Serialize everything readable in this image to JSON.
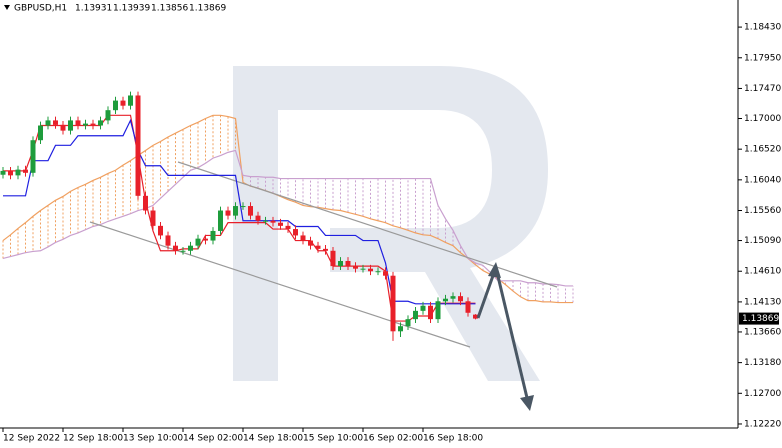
{
  "chart_data": {
    "type": "candlestick",
    "title": "GBPUSD,H1",
    "categories": [
      "12 Sep 2022",
      null,
      null,
      null,
      null,
      null,
      null,
      null,
      "12 Sep 18:00",
      null,
      null,
      null,
      null,
      null,
      null,
      null,
      "13 Sep 10:00",
      null,
      null,
      null,
      null,
      null,
      null,
      null,
      "14 Sep 02:00",
      null,
      null,
      null,
      null,
      null,
      null,
      null,
      "14 Sep 18:00",
      null,
      null,
      null,
      null,
      null,
      null,
      null,
      "15 Sep 10:00",
      null,
      null,
      null,
      null,
      null,
      null,
      null,
      "16 Sep 02:00",
      null,
      null,
      null,
      null,
      null,
      null,
      null,
      "16 Sep 18:00",
      null,
      null,
      null,
      null,
      null,
      null,
      null,
      null,
      null,
      null,
      null,
      null,
      null,
      null,
      null,
      null,
      null,
      null,
      null,
      null
    ],
    "open": [
      1.1612,
      1.1618,
      1.1611,
      1.162,
      1.1615,
      1.1666,
      1.1689,
      1.1697,
      1.169,
      1.1681,
      1.1697,
      1.1689,
      1.1692,
      1.1689,
      1.1697,
      1.1713,
      1.1728,
      1.172,
      1.1736,
      1.1579,
      1.1556,
      1.1532,
      1.1517,
      1.1501,
      1.1493,
      1.1493,
      1.1501,
      1.1512,
      1.1509,
      1.1524,
      1.1556,
      1.1548,
      1.1563,
      1.1563,
      1.1548,
      1.154,
      1.154,
      1.1537,
      1.1532,
      1.1527,
      1.1517,
      1.1509,
      1.1501,
      1.1496,
      1.1493,
      1.1469,
      1.1477,
      1.1469,
      1.1465,
      1.1465,
      1.1461,
      1.1461,
      1.1454,
      1.1367,
      1.1375,
      1.1386,
      1.1399,
      1.1407,
      1.1386,
      1.1414,
      1.1418,
      1.1422,
      1.1414,
      1.13931,
      null,
      null,
      null,
      null,
      null,
      null,
      null,
      null,
      null,
      null,
      null,
      null,
      null
    ],
    "high": [
      1.1624,
      1.1624,
      1.1626,
      1.1626,
      1.1672,
      1.1695,
      1.1703,
      1.1703,
      1.1696,
      1.1703,
      1.1703,
      1.1698,
      1.1698,
      1.1703,
      1.1719,
      1.1734,
      1.1734,
      1.1742,
      1.1742,
      1.1585,
      1.1562,
      1.1538,
      1.1523,
      1.1507,
      1.1499,
      1.1507,
      1.1518,
      1.1518,
      1.153,
      1.1562,
      1.1562,
      1.1569,
      1.1569,
      1.1569,
      1.1554,
      1.1546,
      1.1546,
      1.1543,
      1.1538,
      1.1533,
      1.1523,
      1.1515,
      1.1507,
      1.1502,
      1.1499,
      1.1483,
      1.1483,
      1.1475,
      1.1471,
      1.1471,
      1.1467,
      1.1467,
      1.146,
      1.1381,
      1.1392,
      1.1405,
      1.1413,
      1.1413,
      1.142,
      1.1424,
      1.1428,
      1.1428,
      1.142,
      1.13939,
      null,
      null,
      null,
      null,
      null,
      null,
      null,
      null,
      null,
      null,
      null,
      null,
      null
    ],
    "low": [
      1.1606,
      1.1605,
      1.1605,
      1.1609,
      1.1609,
      1.166,
      1.1683,
      1.1684,
      1.1675,
      1.1675,
      1.1683,
      1.1683,
      1.1683,
      1.1683,
      1.1691,
      1.1707,
      1.1714,
      1.1714,
      1.1573,
      1.155,
      1.1526,
      1.1511,
      1.1495,
      1.1487,
      1.1487,
      1.1487,
      1.1495,
      1.1503,
      1.1503,
      1.1518,
      1.1542,
      1.1542,
      1.1557,
      1.1542,
      1.1534,
      1.1534,
      1.1531,
      1.1526,
      1.1521,
      1.1511,
      1.1503,
      1.1495,
      1.149,
      1.1487,
      1.1463,
      1.1463,
      1.1463,
      1.1459,
      1.1459,
      1.1455,
      1.1455,
      1.1448,
      1.1352,
      1.1358,
      1.1369,
      1.138,
      1.1393,
      1.138,
      1.138,
      1.1408,
      1.1412,
      1.1408,
      1.139,
      1.13856,
      null,
      null,
      null,
      null,
      null,
      null,
      null,
      null,
      null,
      null,
      null,
      null,
      null
    ],
    "close": [
      1.1618,
      1.1611,
      1.162,
      1.1615,
      1.1666,
      1.1689,
      1.1697,
      1.169,
      1.1681,
      1.1697,
      1.1689,
      1.1692,
      1.1689,
      1.1697,
      1.1713,
      1.1728,
      1.172,
      1.1736,
      1.1579,
      1.1556,
      1.1532,
      1.1517,
      1.1501,
      1.1493,
      1.1493,
      1.1501,
      1.1512,
      1.1509,
      1.1524,
      1.1556,
      1.1548,
      1.1563,
      1.1563,
      1.1548,
      1.154,
      1.154,
      1.1537,
      1.1532,
      1.1527,
      1.1517,
      1.1509,
      1.1501,
      1.1496,
      1.1493,
      1.1469,
      1.1477,
      1.1469,
      1.1465,
      1.1465,
      1.1461,
      1.1461,
      1.1454,
      1.1367,
      1.1375,
      1.1386,
      1.1399,
      1.1407,
      1.1386,
      1.1414,
      1.1418,
      1.1422,
      1.1414,
      1.1396,
      1.13869,
      null,
      null,
      null,
      null,
      null,
      null,
      null,
      null,
      null,
      null,
      null,
      null,
      null
    ],
    "up_color": "#1e9c3c",
    "down_color": "#e8202a",
    "series": [
      {
        "color": "#e8202a",
        "values": [
          1.1618,
          1.1618,
          1.1618,
          1.1618,
          1.165,
          1.1689,
          1.1689,
          1.1689,
          1.1689,
          1.1689,
          1.1689,
          1.1689,
          1.1689,
          1.1689,
          1.1705,
          1.1705,
          1.1705,
          1.1705,
          1.1642,
          1.1571,
          1.1524,
          1.1493,
          1.1493,
          1.1493,
          1.1496,
          1.1496,
          1.1496,
          1.1517,
          1.1517,
          1.1517,
          1.1537,
          1.1537,
          1.1537,
          1.1537,
          1.1537,
          1.1537,
          1.1527,
          1.1527,
          1.1527,
          1.1509,
          1.1509,
          1.1509,
          1.1493,
          1.1493,
          1.1469,
          1.1469,
          1.1469,
          1.1469,
          1.1469,
          1.1469,
          1.1469,
          1.1461,
          1.1383,
          1.1383,
          1.1383,
          1.1391,
          1.1391,
          1.1391,
          1.1411,
          1.1411,
          1.1411,
          1.1411,
          1.1411,
          1.1411,
          null,
          null,
          null,
          null,
          null,
          null,
          null,
          null,
          null,
          null,
          null,
          null,
          null
        ]
      },
      {
        "color": "#1f1fe0",
        "values": [
          1.1579,
          1.1579,
          1.1579,
          1.1579,
          1.1634,
          1.1634,
          1.1634,
          1.1658,
          1.1658,
          1.1658,
          1.1673,
          1.1673,
          1.1673,
          1.1673,
          1.1673,
          1.1673,
          1.1673,
          1.1697,
          1.165,
          1.1626,
          1.1626,
          1.1626,
          1.1611,
          1.1611,
          1.1611,
          1.1611,
          1.1611,
          1.1611,
          1.1611,
          1.1611,
          1.1611,
          1.1611,
          1.154,
          1.154,
          1.154,
          1.154,
          1.154,
          1.154,
          1.154,
          1.1531,
          1.1531,
          1.1531,
          1.1531,
          1.1517,
          1.1517,
          1.1517,
          1.1517,
          1.1517,
          1.1509,
          1.1509,
          1.1509,
          1.1474,
          1.1414,
          1.1414,
          1.1414,
          1.141,
          1.141,
          1.141,
          1.141,
          1.141,
          1.141,
          1.141,
          1.141,
          1.141,
          null,
          null,
          null,
          null,
          null,
          null,
          null,
          null,
          null,
          null,
          null,
          null,
          null
        ]
      }
    ],
    "cloud": {
      "a": [
        1.1509,
        1.1518,
        1.1528,
        1.1537,
        1.1547,
        1.1556,
        1.1564,
        1.1572,
        1.1578,
        1.1586,
        1.1592,
        1.1597,
        1.1603,
        1.1608,
        1.1614,
        1.1619,
        1.1627,
        1.1634,
        1.1642,
        1.165,
        1.1658,
        1.1664,
        1.1671,
        1.1677,
        1.1683,
        1.1689,
        1.1694,
        1.17,
        1.1705,
        1.1705,
        1.1703,
        1.17,
        1.16,
        1.1594,
        1.1591,
        1.1587,
        1.1583,
        1.1578,
        1.1573,
        1.1569,
        1.1564,
        1.1562,
        1.1561,
        1.1559,
        1.1557,
        1.1556,
        1.1553,
        1.155,
        1.1547,
        1.1543,
        1.154,
        1.1537,
        1.1532,
        1.1529,
        1.1525,
        1.1521,
        1.1518,
        1.1517,
        1.1512,
        1.1506,
        1.1501,
        1.149,
        1.1481,
        1.1471,
        1.1462,
        1.1456,
        1.1449,
        1.144,
        1.143,
        1.1421,
        1.1415,
        1.1415,
        1.1413,
        1.1413,
        1.1412,
        1.1412,
        1.1412
      ],
      "b": [
        1.1481,
        1.1484,
        1.1487,
        1.149,
        1.1492,
        1.1493,
        1.1499,
        1.1506,
        1.1511,
        1.1517,
        1.1521,
        1.1526,
        1.1531,
        1.1534,
        1.1539,
        1.1543,
        1.1547,
        1.1551,
        1.1556,
        1.1559,
        1.1564,
        1.1575,
        1.1586,
        1.1597,
        1.1608,
        1.1619,
        1.1623,
        1.163,
        1.1638,
        1.1642,
        1.1647,
        1.165,
        1.1611,
        1.1609,
        1.1609,
        1.1608,
        1.1608,
        1.1606,
        1.1606,
        1.1606,
        1.1606,
        1.1606,
        1.1606,
        1.1606,
        1.1606,
        1.1606,
        1.1606,
        1.1606,
        1.1606,
        1.1606,
        1.1606,
        1.1606,
        1.1606,
        1.1606,
        1.1606,
        1.1606,
        1.1606,
        1.1606,
        1.1564,
        1.1543,
        1.1525,
        1.1501,
        1.1481,
        1.1474,
        1.147,
        1.1459,
        1.1446,
        1.1446,
        1.1446,
        1.1446,
        1.1443,
        1.1443,
        1.1441,
        1.1441,
        1.144,
        1.1438,
        1.1438
      ],
      "up_color": "#f0a060",
      "down_color": "#c9a0cf"
    },
    "ylim": [
      1.12157,
      1.18854
    ],
    "yticks": [
      {
        "value": 1.1843,
        "label": "1.18430"
      },
      {
        "value": 1.1795,
        "label": "1.17950"
      },
      {
        "value": 1.1747,
        "label": "1.17470"
      },
      {
        "value": 1.17,
        "label": "1.17000"
      },
      {
        "value": 1.1652,
        "label": "1.16520"
      },
      {
        "value": 1.1604,
        "label": "1.16040"
      },
      {
        "value": 1.1556,
        "label": "1.15560"
      },
      {
        "value": 1.1509,
        "label": "1.15090"
      },
      {
        "value": 1.1461,
        "label": "1.14610"
      },
      {
        "value": 1.1413,
        "label": "1.14130"
      },
      {
        "value": 1.1366,
        "label": "1.13660"
      },
      {
        "value": 1.1318,
        "label": "1.13180"
      },
      {
        "value": 1.127,
        "label": "1.12700"
      },
      {
        "value": 1.1222,
        "label": "1.12220"
      }
    ]
  }
}
